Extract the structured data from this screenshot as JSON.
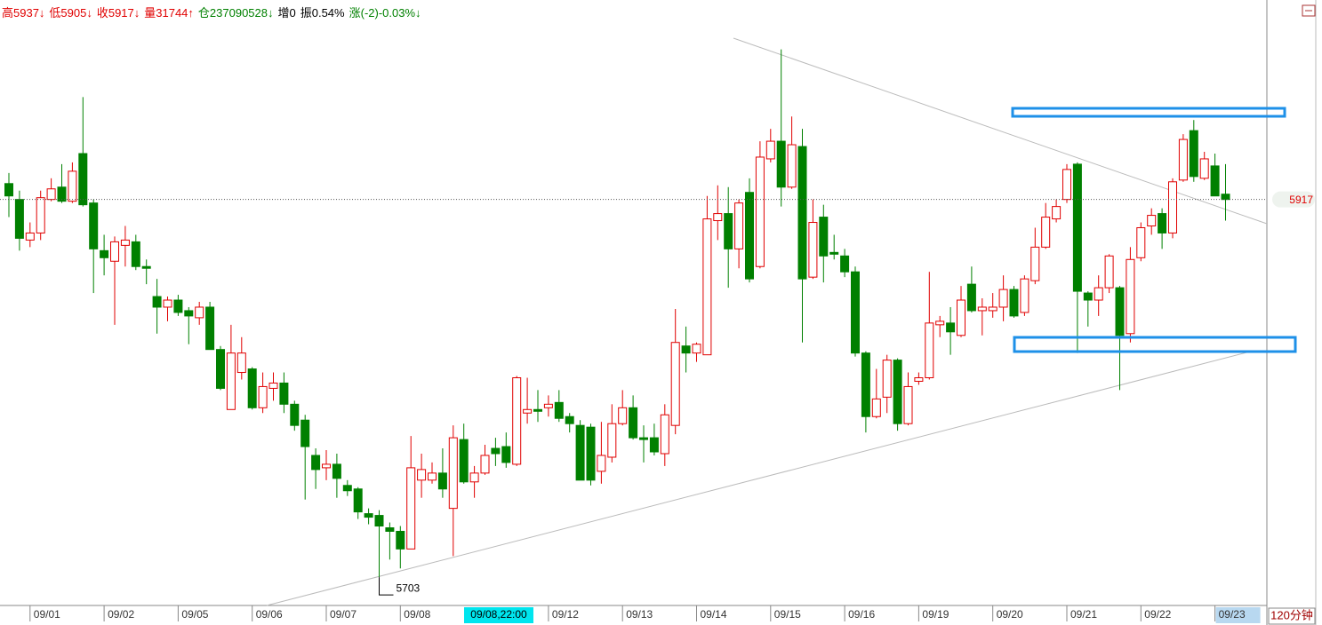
{
  "header": [
    {
      "text": "高5937↓",
      "color": "#e00000"
    },
    {
      "text": "低5905↓",
      "color": "#e00000"
    },
    {
      "text": "收5917↓",
      "color": "#e00000"
    },
    {
      "text": "量31744↑",
      "color": "#e00000"
    },
    {
      "text": "仓237090528↓",
      "color": "#008000"
    },
    {
      "text": "增0",
      "color": "#000000"
    },
    {
      "text": "振0.54%",
      "color": "#000000"
    },
    {
      "text": "涨(-2)-0.03%↓",
      "color": "#008000"
    }
  ],
  "chart_data": {
    "type": "candlestick",
    "period": "120分钟",
    "crosshair_label": "09/08,22:00",
    "up_color": "#e00000",
    "down_color": "#008000",
    "ylim": [
      5688,
      6030
    ],
    "last_price": 5917,
    "low_annotation": 5703,
    "categories": [
      null,
      null,
      "09/01",
      null,
      null,
      null,
      null,
      null,
      null,
      "09/02",
      null,
      null,
      null,
      null,
      null,
      null,
      "09/05",
      null,
      null,
      null,
      null,
      null,
      null,
      "09/06",
      null,
      null,
      null,
      null,
      null,
      null,
      "09/07",
      null,
      null,
      null,
      null,
      null,
      null,
      "09/08",
      null,
      null,
      null,
      null,
      null,
      null,
      null,
      null,
      null,
      null,
      null,
      null,
      null,
      "09/12",
      null,
      null,
      null,
      null,
      null,
      null,
      "09/13",
      null,
      null,
      null,
      null,
      null,
      null,
      "09/14",
      null,
      null,
      null,
      null,
      null,
      null,
      "09/15",
      null,
      null,
      null,
      null,
      null,
      null,
      "09/16",
      null,
      null,
      null,
      null,
      null,
      null,
      "09/19",
      null,
      null,
      null,
      null,
      null,
      null,
      "09/20",
      null,
      null,
      null,
      null,
      null,
      null,
      "09/21",
      null,
      null,
      null,
      null,
      null,
      null,
      "09/22",
      null,
      null,
      null,
      null,
      null,
      null,
      "09/23",
      null
    ],
    "open": [
      5926,
      5917,
      5894,
      5898,
      5917,
      5924,
      5916,
      5943,
      5915,
      5888,
      5882,
      5891,
      5893,
      5879,
      5862,
      5856,
      5860,
      5854,
      5850,
      5856,
      5832,
      5798,
      5819,
      5821,
      5799,
      5810,
      5813,
      5801,
      5792,
      5772,
      5765,
      5767,
      5755,
      5753,
      5739,
      5738,
      5731,
      5729,
      5719,
      5758,
      5758,
      5762,
      5742,
      5781,
      5757,
      5762,
      5776,
      5777,
      5767,
      5796,
      5798,
      5799,
      5802,
      5794,
      5789,
      5788,
      5763,
      5771,
      5790,
      5799,
      5782,
      5782,
      5773,
      5789,
      5834,
      5830,
      5829,
      5905,
      5909,
      5889,
      5921,
      5879,
      5940,
      5950,
      5924,
      5947,
      5873,
      5907,
      5887,
      5885,
      5876,
      5830,
      5794,
      5805,
      5826,
      5790,
      5814,
      5816,
      5846,
      5847,
      5840,
      5869,
      5854,
      5854,
      5856,
      5866,
      5853,
      5871,
      5890,
      5906,
      5917,
      5937,
      5864,
      5860,
      5867,
      5867,
      5841,
      5884,
      5902,
      5909,
      5898,
      5928,
      5956,
      5929,
      5936,
      5920
    ],
    "high": [
      5932,
      5922,
      5904,
      5922,
      5929,
      5937,
      5938,
      5975,
      5917,
      5897,
      5896,
      5902,
      5897,
      5883,
      5872,
      5862,
      5863,
      5856,
      5859,
      5859,
      5834,
      5846,
      5839,
      5822,
      5819,
      5819,
      5819,
      5803,
      5795,
      5776,
      5775,
      5773,
      5758,
      5754,
      5742,
      5741,
      5734,
      5732,
      5783,
      5773,
      5768,
      5776,
      5789,
      5790,
      5766,
      5778,
      5782,
      5785,
      5817,
      5816,
      5809,
      5806,
      5809,
      5796,
      5792,
      5790,
      5791,
      5801,
      5809,
      5806,
      5789,
      5790,
      5801,
      5855,
      5845,
      5836,
      5919,
      5925,
      5924,
      5917,
      5929,
      5950,
      5957,
      6002,
      5964,
      5957,
      5917,
      5914,
      5897,
      5889,
      5879,
      5831,
      5821,
      5829,
      5827,
      5819,
      5819,
      5876,
      5851,
      5856,
      5868,
      5879,
      5861,
      5864,
      5874,
      5868,
      5874,
      5901,
      5915,
      5917,
      5937,
      5938,
      5865,
      5874,
      5886,
      5868,
      5890,
      5904,
      5912,
      5912,
      5929,
      5954,
      5962,
      5944,
      5943,
      5937
    ],
    "low": [
      5907,
      5888,
      5890,
      5894,
      5916,
      5915,
      5915,
      5913,
      5864,
      5874,
      5846,
      5879,
      5877,
      5869,
      5841,
      5848,
      5851,
      5835,
      5846,
      5832,
      5809,
      5798,
      5815,
      5798,
      5796,
      5803,
      5796,
      5786,
      5747,
      5753,
      5758,
      5748,
      5749,
      5736,
      5733,
      5703,
      5713,
      5708,
      5719,
      5748,
      5756,
      5748,
      5715,
      5756,
      5748,
      5761,
      5766,
      5765,
      5766,
      5790,
      5791,
      5794,
      5791,
      5785,
      5758,
      5755,
      5756,
      5768,
      5789,
      5781,
      5768,
      5772,
      5766,
      5784,
      5819,
      5825,
      5829,
      5894,
      5867,
      5878,
      5870,
      5878,
      5938,
      5913,
      5923,
      5836,
      5872,
      5870,
      5883,
      5873,
      5828,
      5785,
      5793,
      5796,
      5786,
      5789,
      5812,
      5815,
      5839,
      5829,
      5839,
      5853,
      5840,
      5850,
      5848,
      5850,
      5851,
      5869,
      5889,
      5904,
      5915,
      5830,
      5845,
      5851,
      5864,
      5809,
      5836,
      5882,
      5897,
      5889,
      5895,
      5927,
      5927,
      5928,
      5919,
      5905
    ],
    "close": [
      5919,
      5895,
      5898,
      5918,
      5923,
      5916,
      5933,
      5914,
      5889,
      5884,
      5893,
      5894,
      5879,
      5878,
      5856,
      5860,
      5853,
      5851,
      5856,
      5832,
      5810,
      5830,
      5830,
      5799,
      5811,
      5813,
      5801,
      5789,
      5777,
      5764,
      5767,
      5759,
      5752,
      5740,
      5737,
      5732,
      5729,
      5719,
      5765,
      5764,
      5762,
      5753,
      5782,
      5757,
      5762,
      5772,
      5773,
      5768,
      5816,
      5798,
      5797,
      5801,
      5793,
      5790,
      5758,
      5758,
      5772,
      5790,
      5799,
      5782,
      5781,
      5774,
      5795,
      5836,
      5830,
      5835,
      5906,
      5909,
      5889,
      5915,
      5872,
      5941,
      5950,
      5924,
      5948,
      5872,
      5904,
      5885,
      5886,
      5876,
      5830,
      5794,
      5804,
      5826,
      5790,
      5811,
      5816,
      5847,
      5848,
      5842,
      5860,
      5854,
      5856,
      5856,
      5866,
      5851,
      5872,
      5890,
      5907,
      5913,
      5934,
      5865,
      5860,
      5867,
      5885,
      5840,
      5883,
      5901,
      5908,
      5898,
      5927,
      5951,
      5930,
      5940,
      5919,
      5917
    ]
  }
}
